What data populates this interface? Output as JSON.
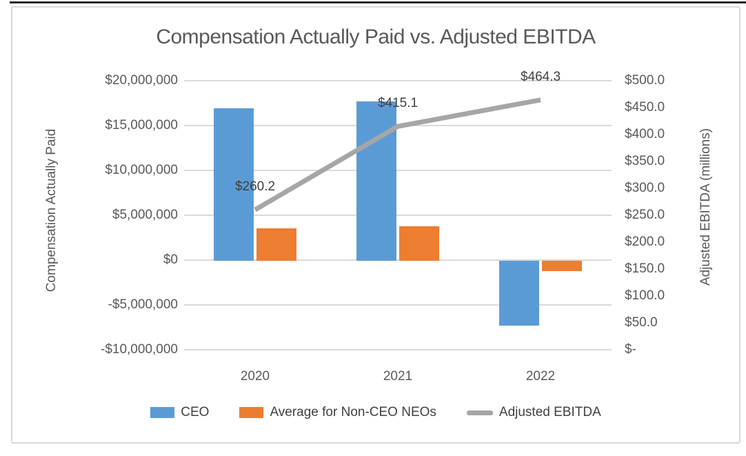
{
  "page": {
    "top_border_color": "#262626"
  },
  "chart_data": {
    "type": "combo",
    "title": "Compensation Actually Paid vs. Adjusted EBITDA",
    "categories": [
      "2020",
      "2021",
      "2022"
    ],
    "series": [
      {
        "name": "CEO",
        "type": "bar",
        "axis": "left",
        "color": "#5B9BD5",
        "values": [
          17000000,
          17800000,
          -7200000
        ]
      },
      {
        "name": "Average for Non-CEO NEOs",
        "type": "bar",
        "axis": "left",
        "color": "#ED7D31",
        "values": [
          3600000,
          3850000,
          -1150000
        ]
      },
      {
        "name": "Adjusted EBITDA",
        "type": "line",
        "axis": "right",
        "color": "#A6A6A6",
        "values": [
          260.2,
          415.1,
          464.3
        ],
        "data_labels": [
          "$260.2",
          "$415.1",
          "$464.3"
        ]
      }
    ],
    "left_axis": {
      "title": "Compensation Actually Paid",
      "min": -10000000,
      "max": 20000000,
      "tick_labels": [
        "$20,000,000",
        "$15,000,000",
        "$10,000,000",
        "$5,000,000",
        "$0",
        "-$5,000,000",
        "-$10,000,000"
      ],
      "tick_values": [
        20000000,
        15000000,
        10000000,
        5000000,
        0,
        -5000000,
        -10000000
      ]
    },
    "right_axis": {
      "title": "Adjusted EBITDA (millions)",
      "min": 0,
      "max": 500,
      "tick_labels": [
        "$500.0",
        "$450.0",
        "$400.0",
        "$350.0",
        "$300.0",
        "$250.0",
        "$200.0",
        "$150.0",
        "$100.0",
        "$50.0",
        "$-"
      ],
      "tick_values": [
        500,
        450,
        400,
        350,
        300,
        250,
        200,
        150,
        100,
        50,
        0
      ]
    },
    "grid": true,
    "legend_position": "bottom",
    "colors": {
      "gridline": "#D9D9D9",
      "axis_text": "#595959",
      "title_text": "#595959",
      "data_label_text": "#404040",
      "chart_border": "#D9D9D9"
    }
  }
}
